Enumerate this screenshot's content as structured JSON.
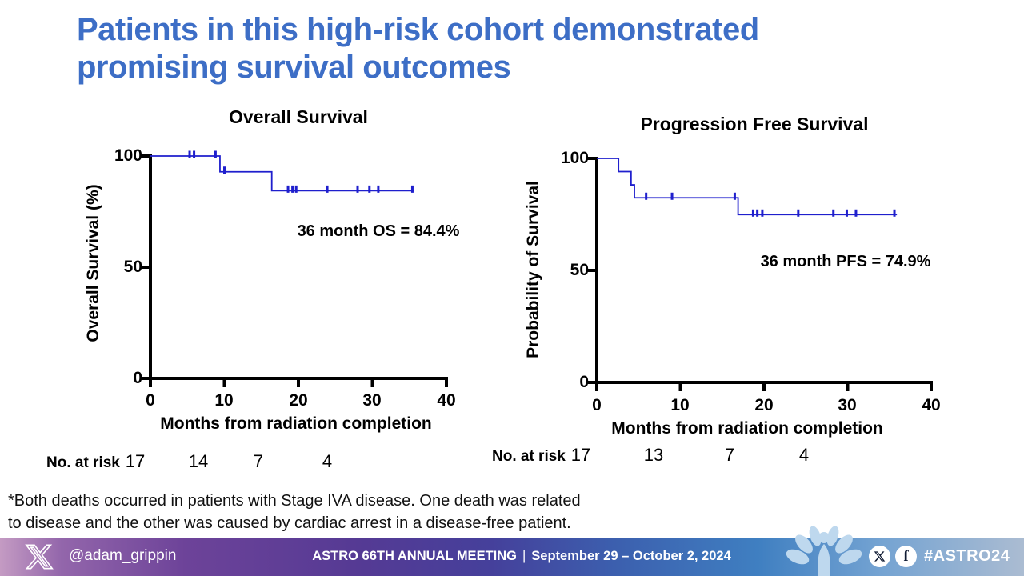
{
  "slide": {
    "title_line1": "Patients in this high-risk cohort demonstrated",
    "title_line2": "promising survival outcomes",
    "title_color": "#3d6ec6",
    "footnote_line1": "*Both deaths occurred in patients with Stage IVA disease. One death was related",
    "footnote_line2": "to disease and the other was caused by cardiac arrest in a disease-free patient."
  },
  "footer": {
    "handle": "@adam_grippin",
    "meeting_name": "ASTRO 66TH ANNUAL MEETING",
    "separator": "|",
    "meeting_dates": "September 29 – October 2, 2024",
    "hashtag": "#ASTRO24",
    "icons": [
      "x-logo-outline-icon",
      "astro-flower-logo",
      "x-circle-icon",
      "facebook-circle-icon"
    ],
    "gradient_left": "#c49bc3",
    "gradient_mid": "#45409b",
    "gradient_right": "#abbcd2"
  },
  "chart_data": [
    {
      "type": "line",
      "subtype": "kaplan-meier-step",
      "title": "Overall Survival",
      "xlabel": "Months from radiation completion",
      "ylabel": "Overall Survival (%)",
      "annotation": "36 month OS = 84.4%",
      "xlim": [
        0,
        40
      ],
      "ylim": [
        0,
        100
      ],
      "xticks": [
        0,
        10,
        20,
        30,
        40
      ],
      "yticks": [
        100,
        50,
        0
      ],
      "grid": false,
      "legend": "none",
      "curve_color": "#1f1fcd",
      "steps": [
        [
          0,
          100
        ],
        [
          9.4,
          100
        ],
        [
          9.4,
          92.9
        ],
        [
          16.4,
          92.9
        ],
        [
          16.4,
          84.4
        ],
        [
          35.6,
          84.4
        ]
      ],
      "censor_marks": [
        [
          5.3,
          100
        ],
        [
          5.9,
          100
        ],
        [
          8.8,
          100
        ],
        [
          10.0,
          92.9
        ],
        [
          18.6,
          84.4
        ],
        [
          19.2,
          84.4
        ],
        [
          19.7,
          84.4
        ],
        [
          23.9,
          84.4
        ],
        [
          28.0,
          84.4
        ],
        [
          29.6,
          84.4
        ],
        [
          30.8,
          84.4
        ],
        [
          35.4,
          84.4
        ]
      ],
      "at_risk": {
        "label": "No. at risk",
        "months": [
          0,
          10,
          20,
          30
        ],
        "values": [
          17,
          14,
          7,
          4
        ]
      }
    },
    {
      "type": "line",
      "subtype": "kaplan-meier-step",
      "title": "Progression Free Survival",
      "xlabel": "Months from radiation completion",
      "ylabel": "Probability of Survival",
      "annotation": "36 month PFS = 74.9%",
      "xlim": [
        0,
        40
      ],
      "ylim": [
        0,
        100
      ],
      "xticks": [
        0,
        10,
        20,
        30,
        40
      ],
      "yticks": [
        100,
        50,
        0
      ],
      "grid": false,
      "legend": "none",
      "curve_color": "#1f1fcd",
      "steps": [
        [
          0,
          100
        ],
        [
          2.6,
          100
        ],
        [
          2.6,
          94.1
        ],
        [
          4.1,
          94.1
        ],
        [
          4.1,
          88.2
        ],
        [
          4.5,
          88.2
        ],
        [
          4.5,
          82.4
        ],
        [
          16.9,
          82.4
        ],
        [
          16.9,
          74.9
        ],
        [
          35.9,
          74.9
        ]
      ],
      "censor_marks": [
        [
          5.9,
          82.4
        ],
        [
          9.0,
          82.4
        ],
        [
          16.5,
          82.4
        ],
        [
          18.7,
          74.9
        ],
        [
          19.2,
          74.9
        ],
        [
          19.8,
          74.9
        ],
        [
          24.1,
          74.9
        ],
        [
          28.3,
          74.9
        ],
        [
          29.9,
          74.9
        ],
        [
          31.0,
          74.9
        ],
        [
          35.6,
          74.9
        ]
      ],
      "at_risk": {
        "label": "No. at risk",
        "months": [
          0,
          10,
          20,
          30
        ],
        "values": [
          17,
          13,
          7,
          4
        ]
      }
    }
  ]
}
